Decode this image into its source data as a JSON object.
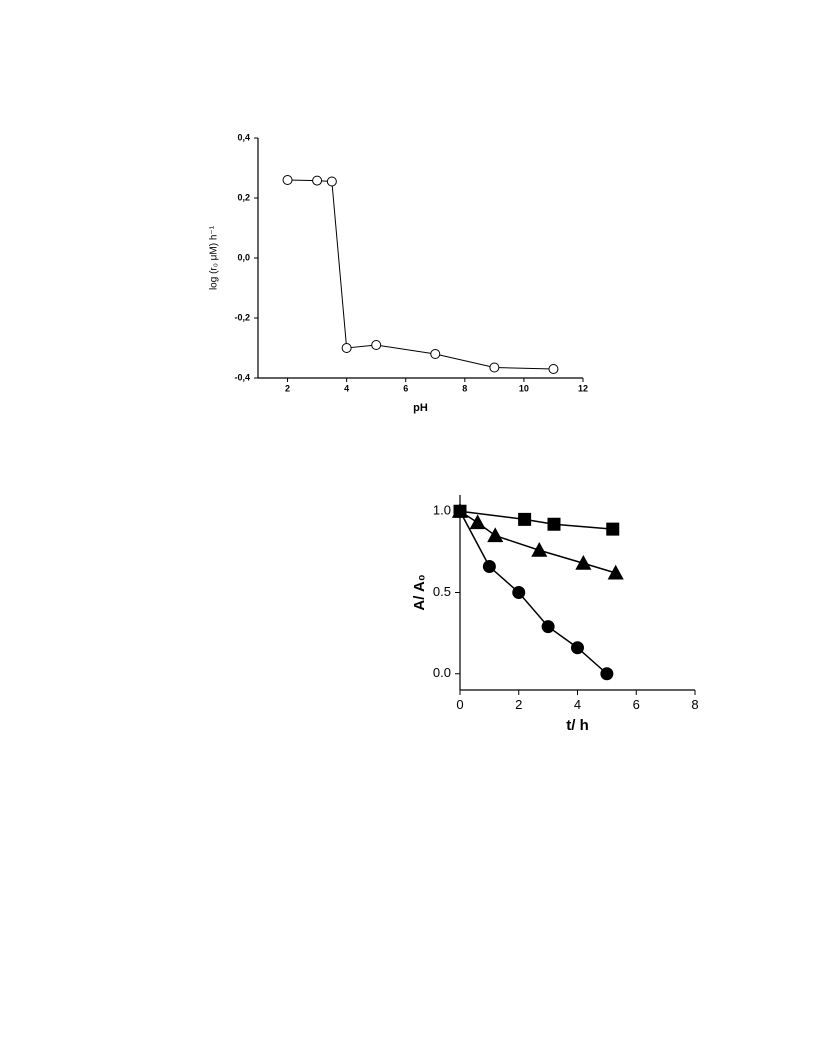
{
  "chart_data": [
    {
      "type": "line",
      "x_label": "pH",
      "y_label": "log (r₀ μM) h⁻¹",
      "x": [
        2,
        3,
        3.5,
        4,
        5,
        7,
        9,
        11
      ],
      "series": [
        {
          "color": "#000000",
          "marker": "circle",
          "marker_fill": "#ffffff",
          "values": [
            0.26,
            0.258,
            0.255,
            -0.3,
            -0.29,
            -0.32,
            -0.365,
            -0.37
          ]
        }
      ],
      "xlim": [
        1,
        12
      ],
      "xticks": [
        2,
        4,
        6,
        8,
        10,
        12
      ],
      "ylim": [
        -0.4,
        0.4
      ],
      "yticks": [
        {
          "value": -0.4,
          "label": "-0,4"
        },
        {
          "value": -0.2,
          "label": "-0,2"
        },
        {
          "value": 0,
          "label": "0,0"
        },
        {
          "value": 0.2,
          "label": "0,2"
        },
        {
          "value": 0.4,
          "label": "0,4"
        }
      ]
    },
    {
      "type": "scatter",
      "x_label": "t/ h",
      "y_label": "A/ A₀",
      "series": [
        {
          "color": "#000000",
          "marker": "square",
          "x": [
            0,
            2.2,
            3.2,
            5.2
          ],
          "values": [
            1.0,
            0.95,
            0.92,
            0.89
          ]
        },
        {
          "color": "#000000",
          "marker": "triangle",
          "x": [
            0,
            0.6,
            1.2,
            2.7,
            4.2,
            5.3
          ],
          "values": [
            1.0,
            0.93,
            0.85,
            0.76,
            0.68,
            0.62
          ]
        },
        {
          "color": "#000000",
          "marker": "circle",
          "x": [
            0,
            1,
            2,
            3,
            4,
            5
          ],
          "values": [
            1.0,
            0.66,
            0.5,
            0.29,
            0.16,
            0.0
          ]
        }
      ],
      "xlim": [
        0,
        8
      ],
      "xticks": [
        0,
        2,
        4,
        6,
        8
      ],
      "ylim": [
        -0.1,
        1.1
      ],
      "yticks": [
        {
          "value": 0,
          "label": "0.0"
        },
        {
          "value": 0.5,
          "label": "0.5"
        },
        {
          "value": 1,
          "label": "1.0"
        }
      ]
    }
  ]
}
